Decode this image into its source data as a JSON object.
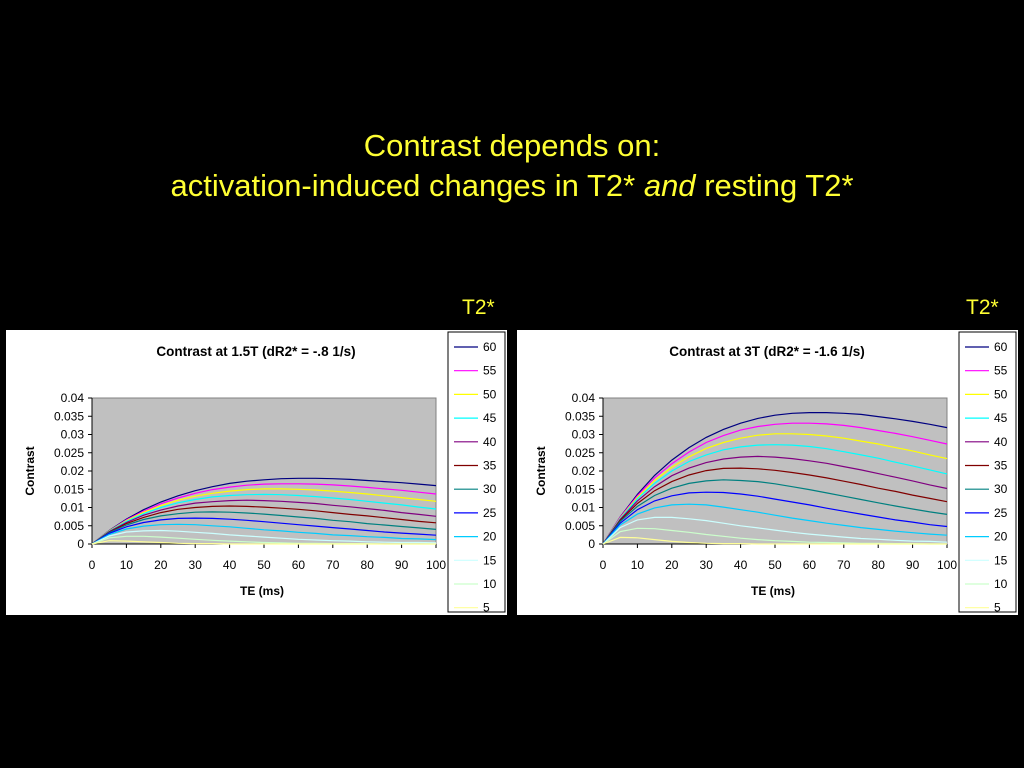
{
  "slide": {
    "title_line1": "Contrast depends on:",
    "title_line2_a": "activation-induced changes in T2*",
    "title_line2_em": "and",
    "title_line2_b": "resting T2*",
    "legend_heading": "T2*"
  },
  "colors": {
    "background": "#000000",
    "title_text": "#ffff33",
    "plot_area": "#c0c0c0",
    "series": {
      "60": "#000080",
      "55": "#ff00ff",
      "50": "#ffff00",
      "45": "#00ffff",
      "40": "#800080",
      "35": "#800000",
      "30": "#008080",
      "25": "#0000ff",
      "20": "#00ccff",
      "15": "#ccffff",
      "10": "#ccffcc",
      "5": "#ffff99"
    }
  },
  "chart_data": [
    {
      "type": "line",
      "title": "Contrast at 1.5T (dR2* = -.8 1/s)",
      "xlabel": "TE (ms)",
      "ylabel": "Contrast",
      "xlim": [
        0,
        100
      ],
      "ylim": [
        0,
        0.04
      ],
      "xticks": [
        "0",
        "10",
        "20",
        "30",
        "40",
        "50",
        "60",
        "70",
        "80",
        "90",
        "100"
      ],
      "yticks": [
        "0",
        "0.005",
        "0.01",
        "0.015",
        "0.02",
        "0.025",
        "0.03",
        "0.035",
        "0.04"
      ],
      "grid": false,
      "legend": "right",
      "x": [
        0,
        5,
        10,
        15,
        20,
        25,
        30,
        35,
        40,
        45,
        50,
        55,
        60,
        65,
        70,
        75,
        80,
        85,
        90,
        95,
        100
      ],
      "series": [
        {
          "name": "60",
          "values": [
            0,
            0.0037,
            0.0068,
            0.0094,
            0.0115,
            0.0132,
            0.0146,
            0.0157,
            0.0166,
            0.0172,
            0.0176,
            0.0179,
            0.018,
            0.018,
            0.0179,
            0.0177,
            0.0174,
            0.0171,
            0.0168,
            0.0164,
            0.016
          ]
        },
        {
          "name": "55",
          "values": [
            0,
            0.0036,
            0.0066,
            0.009,
            0.011,
            0.0126,
            0.0139,
            0.0149,
            0.0156,
            0.0161,
            0.0164,
            0.0165,
            0.0165,
            0.0164,
            0.0162,
            0.0159,
            0.0155,
            0.0151,
            0.0147,
            0.0142,
            0.0137
          ]
        },
        {
          "name": "50",
          "values": [
            0,
            0.0036,
            0.0064,
            0.0087,
            0.0105,
            0.012,
            0.0131,
            0.0139,
            0.0145,
            0.0149,
            0.0151,
            0.0151,
            0.015,
            0.0148,
            0.0145,
            0.0141,
            0.0137,
            0.0132,
            0.0127,
            0.0122,
            0.0117
          ]
        },
        {
          "name": "45",
          "values": [
            0,
            0.0035,
            0.0062,
            0.0083,
            0.01,
            0.0113,
            0.0122,
            0.0129,
            0.0133,
            0.0135,
            0.0136,
            0.0135,
            0.0133,
            0.013,
            0.0126,
            0.0122,
            0.0117,
            0.0112,
            0.0107,
            0.0101,
            0.0096
          ]
        },
        {
          "name": "40",
          "values": [
            0,
            0.0034,
            0.0059,
            0.0079,
            0.0093,
            0.0104,
            0.0112,
            0.0116,
            0.0119,
            0.012,
            0.0119,
            0.0117,
            0.0114,
            0.0111,
            0.0106,
            0.0102,
            0.0097,
            0.0092,
            0.0086,
            0.0081,
            0.0076
          ]
        },
        {
          "name": "35",
          "values": [
            0,
            0.0032,
            0.0056,
            0.0073,
            0.0086,
            0.0095,
            0.01,
            0.0103,
            0.0104,
            0.0103,
            0.0101,
            0.0098,
            0.0095,
            0.0091,
            0.0086,
            0.0081,
            0.0077,
            0.0072,
            0.0067,
            0.0062,
            0.0058
          ]
        },
        {
          "name": "30",
          "values": [
            0,
            0.0031,
            0.0052,
            0.0067,
            0.0077,
            0.0083,
            0.0087,
            0.0088,
            0.0087,
            0.0085,
            0.0082,
            0.0078,
            0.0074,
            0.007,
            0.0065,
            0.0061,
            0.0056,
            0.0052,
            0.0048,
            0.0044,
            0.004
          ]
        },
        {
          "name": "25",
          "values": [
            0,
            0.0029,
            0.0047,
            0.0059,
            0.0066,
            0.007,
            0.0071,
            0.007,
            0.0068,
            0.0065,
            0.0061,
            0.0057,
            0.0053,
            0.0049,
            0.0045,
            0.0041,
            0.0037,
            0.0033,
            0.003,
            0.0027,
            0.0024
          ]
        },
        {
          "name": "20",
          "values": [
            0,
            0.0026,
            0.0041,
            0.0049,
            0.0053,
            0.0054,
            0.0053,
            0.005,
            0.0047,
            0.0043,
            0.0039,
            0.0036,
            0.0032,
            0.0029,
            0.0025,
            0.0023,
            0.002,
            0.0018,
            0.0015,
            0.0014,
            0.0012
          ]
        },
        {
          "name": "15",
          "values": [
            0,
            0.0022,
            0.0033,
            0.0036,
            0.0037,
            0.0035,
            0.0032,
            0.0029,
            0.0025,
            0.0022,
            0.0019,
            0.0016,
            0.0013,
            0.0011,
            0.0009,
            0.0008,
            0.0006,
            0.0005,
            0.0004,
            0.0004,
            0.0003
          ]
        },
        {
          "name": "10",
          "values": [
            0,
            0.0017,
            0.0021,
            0.0021,
            0.0019,
            0.0016,
            0.0013,
            0.001,
            0.0008,
            0.0006,
            0.0004,
            0.0003,
            0.0002,
            0.0002,
            0.0001,
            0.0001,
            0.0001,
            0,
            0,
            0,
            0
          ]
        },
        {
          "name": "5",
          "values": [
            0,
            0.0009,
            0.0008,
            0.0006,
            0.0004,
            0.0002,
            0.0001,
            0.0001,
            0,
            0,
            0,
            0,
            0,
            0,
            0,
            0,
            0,
            0,
            0,
            0,
            0
          ]
        }
      ]
    },
    {
      "type": "line",
      "title": "Contrast at 3T (dR2* = -1.6 1/s)",
      "xlabel": "TE (ms)",
      "ylabel": "Contrast",
      "xlim": [
        0,
        100
      ],
      "ylim": [
        0,
        0.04
      ],
      "xticks": [
        "0",
        "10",
        "20",
        "30",
        "40",
        "50",
        "60",
        "70",
        "80",
        "90",
        "100"
      ],
      "yticks": [
        "0",
        "0.005",
        "0.01",
        "0.015",
        "0.02",
        "0.025",
        "0.03",
        "0.035",
        "0.04"
      ],
      "grid": false,
      "legend": "right",
      "x": [
        0,
        5,
        10,
        15,
        20,
        25,
        30,
        35,
        40,
        45,
        50,
        55,
        60,
        65,
        70,
        75,
        80,
        85,
        90,
        95,
        100
      ],
      "series": [
        {
          "name": "60",
          "values": [
            0,
            0.0074,
            0.0136,
            0.0188,
            0.023,
            0.0264,
            0.0292,
            0.0314,
            0.0331,
            0.0344,
            0.0353,
            0.0358,
            0.036,
            0.036,
            0.0358,
            0.0355,
            0.0349,
            0.0343,
            0.0336,
            0.0328,
            0.0319
          ]
        },
        {
          "name": "55",
          "values": [
            0,
            0.0073,
            0.0132,
            0.0181,
            0.022,
            0.0252,
            0.0278,
            0.0297,
            0.0312,
            0.0322,
            0.0328,
            0.0331,
            0.0331,
            0.0329,
            0.0325,
            0.0319,
            0.0311,
            0.0303,
            0.0294,
            0.0284,
            0.0274
          ]
        },
        {
          "name": "50",
          "values": [
            0,
            0.0071,
            0.0128,
            0.0174,
            0.021,
            0.0239,
            0.0262,
            0.0278,
            0.029,
            0.0298,
            0.0302,
            0.0302,
            0.03,
            0.0296,
            0.029,
            0.0282,
            0.0274,
            0.0264,
            0.0255,
            0.0244,
            0.0234
          ]
        },
        {
          "name": "45",
          "values": [
            0,
            0.0069,
            0.0124,
            0.0166,
            0.02,
            0.0226,
            0.0244,
            0.0258,
            0.0266,
            0.0271,
            0.0272,
            0.0271,
            0.0267,
            0.0261,
            0.0253,
            0.0244,
            0.0235,
            0.0224,
            0.0214,
            0.0203,
            0.0192
          ]
        },
        {
          "name": "40",
          "values": [
            0,
            0.0067,
            0.0118,
            0.0157,
            0.0187,
            0.0208,
            0.0223,
            0.0233,
            0.0238,
            0.024,
            0.0238,
            0.0234,
            0.0228,
            0.0221,
            0.0212,
            0.0203,
            0.0193,
            0.0183,
            0.0173,
            0.0162,
            0.0152
          ]
        },
        {
          "name": "35",
          "values": [
            0,
            0.0065,
            0.0111,
            0.0146,
            0.0171,
            0.0189,
            0.0201,
            0.0207,
            0.0208,
            0.0206,
            0.0202,
            0.0196,
            0.0189,
            0.0181,
            0.0172,
            0.0163,
            0.0153,
            0.0144,
            0.0134,
            0.0125,
            0.0116
          ]
        },
        {
          "name": "30",
          "values": [
            0,
            0.0062,
            0.0103,
            0.0133,
            0.0153,
            0.0166,
            0.0173,
            0.0176,
            0.0174,
            0.0171,
            0.0165,
            0.0157,
            0.0149,
            0.014,
            0.0131,
            0.0122,
            0.0113,
            0.0104,
            0.0096,
            0.0088,
            0.0081
          ]
        },
        {
          "name": "25",
          "values": [
            0,
            0.0057,
            0.0094,
            0.0118,
            0.0132,
            0.014,
            0.0142,
            0.0141,
            0.0137,
            0.0131,
            0.0123,
            0.0115,
            0.0107,
            0.0098,
            0.009,
            0.0082,
            0.0074,
            0.0066,
            0.006,
            0.0053,
            0.0048
          ]
        },
        {
          "name": "20",
          "values": [
            0,
            0.0052,
            0.0082,
            0.0099,
            0.0107,
            0.0109,
            0.0107,
            0.0101,
            0.0094,
            0.0087,
            0.0079,
            0.0071,
            0.0064,
            0.0057,
            0.0051,
            0.0045,
            0.004,
            0.0035,
            0.0031,
            0.0027,
            0.0024
          ]
        },
        {
          "name": "15",
          "values": [
            0,
            0.0045,
            0.0066,
            0.0073,
            0.0073,
            0.0069,
            0.0064,
            0.0057,
            0.005,
            0.0044,
            0.0038,
            0.0032,
            0.0027,
            0.0023,
            0.0019,
            0.0015,
            0.0013,
            0.001,
            0.0008,
            0.0007,
            0.0005
          ]
        },
        {
          "name": "10",
          "values": [
            0,
            0.0034,
            0.0043,
            0.0042,
            0.0037,
            0.0032,
            0.0026,
            0.0021,
            0.0016,
            0.0012,
            0.0009,
            0.0007,
            0.0005,
            0.0004,
            0.0003,
            0.0002,
            0.0002,
            0.0001,
            0.0001,
            0,
            0
          ]
        },
        {
          "name": "5",
          "values": [
            0,
            0.0018,
            0.0017,
            0.0012,
            0.0007,
            0.0004,
            0.0002,
            0.0001,
            0.0001,
            0,
            0,
            0,
            0,
            0,
            0,
            0,
            0,
            0,
            0,
            0,
            0
          ]
        }
      ]
    }
  ]
}
